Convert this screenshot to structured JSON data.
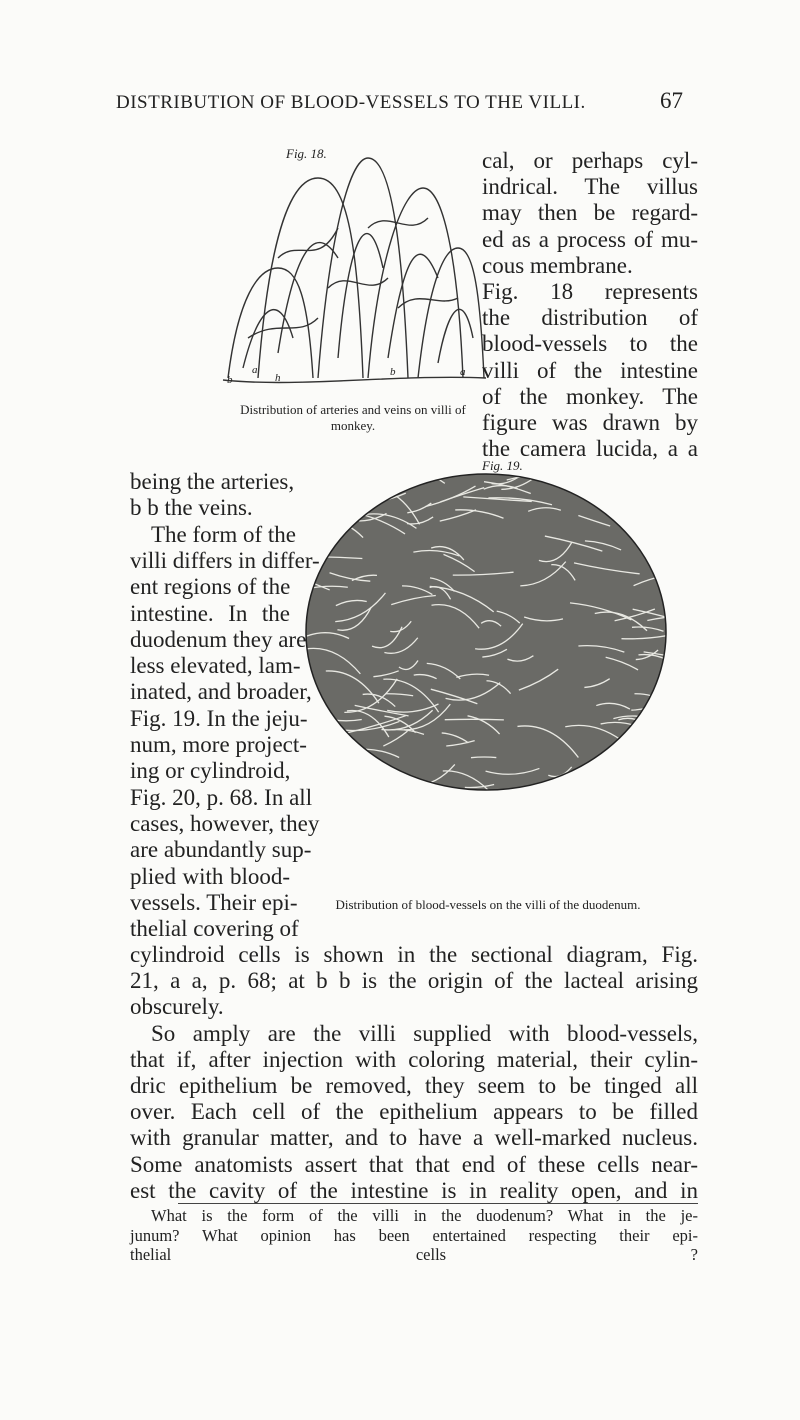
{
  "header": {
    "title": "DISTRIBUTION OF BLOOD-VESSELS TO THE VILLI.",
    "page_number": "67"
  },
  "figure_18": {
    "label": "Fig. 18.",
    "letters": [
      "b",
      "a",
      "h",
      "b",
      "a"
    ],
    "caption": "Distribution of arteries and veins on villi of monkey."
  },
  "figure_19": {
    "label": "Fig. 19.",
    "caption": "Distribution of blood-vessels on the villi of the duodenum."
  },
  "right_column_lines": [
    "cal, or perhaps cyl-",
    "indrical. The villus",
    "may then be regard-",
    "ed as a process of mu-",
    "cous membrane.",
    "Fig. 18 represents",
    "the distribution of",
    "blood-vessels to the",
    "villi of the intestine",
    "of the monkey. The",
    "figure was drawn by",
    "the camera lucida, a a"
  ],
  "left_column_lines": [
    "being the arteries,",
    "b b the veins.",
    "The form of the",
    "villi differs in differ-",
    "ent regions of the",
    "intestine. In the",
    "duodenum they are",
    "less elevated, lam-",
    "inated, and broader,",
    "Fig. 19. In the jeju-",
    "num, more project-",
    "ing or cylindroid,",
    "Fig. 20, p. 68. In all",
    "cases, however, they",
    "are abundantly sup-",
    "plied with blood-",
    "vessels. Their epi-",
    "thelial covering of"
  ],
  "full_width_lines": [
    "cylindroid cells is shown in the sectional diagram, Fig.",
    "21, a a, p. 68; at b b is the origin of the lacteal arising",
    "obscurely.",
    "So amply are the villi supplied with blood-vessels,",
    "that if, after injection with coloring material, their cylin-",
    "dric epithelium be removed, they seem to be tinged all",
    "over. Each cell of the epithelium appears to be filled",
    "with granular matter, and to have a well-marked nucleus.",
    "Some anatomists assert that that end of these cells near-",
    "est the cavity of the intestine is in reality open, and in"
  ],
  "questions": [
    "What is the form of the villi in the duodenum? What in the je-",
    "junum? What opinion has been entertained respecting their epi-",
    "thelial cells ?"
  ]
}
